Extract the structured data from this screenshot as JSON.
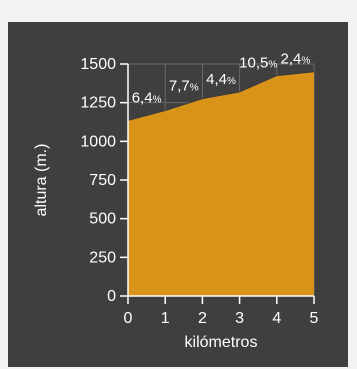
{
  "chart_data": {
    "type": "area",
    "xlabel": "kilómetros",
    "ylabel": "altura (m.)",
    "xlim": [
      0,
      5
    ],
    "ylim": [
      0,
      1500
    ],
    "x_ticks": [
      "0",
      "1",
      "2",
      "3",
      "4",
      "5"
    ],
    "y_ticks": [
      "0",
      "250",
      "500",
      "750",
      "1000",
      "1250",
      "1500"
    ],
    "grid": true,
    "series": [
      {
        "x": [
          0,
          1,
          2,
          3,
          4,
          5
        ],
        "y": [
          1135,
          1199,
          1276,
          1320,
          1425,
          1450
        ]
      }
    ],
    "annotations": [
      {
        "segment": [
          0,
          1
        ],
        "value": "6,4",
        "unit": "%"
      },
      {
        "segment": [
          1,
          2
        ],
        "value": "7,7",
        "unit": "%"
      },
      {
        "segment": [
          2,
          3
        ],
        "value": "4,4",
        "unit": "%"
      },
      {
        "segment": [
          3,
          4
        ],
        "value": "10,5",
        "unit": "%"
      },
      {
        "segment": [
          4,
          5
        ],
        "value": "2,4",
        "unit": "%"
      }
    ],
    "colors": {
      "background": "#3f3f3f",
      "fill": "#d99319",
      "grid": "#6a6a6a",
      "text": "#ffffff",
      "axis": "#ffffff"
    }
  }
}
